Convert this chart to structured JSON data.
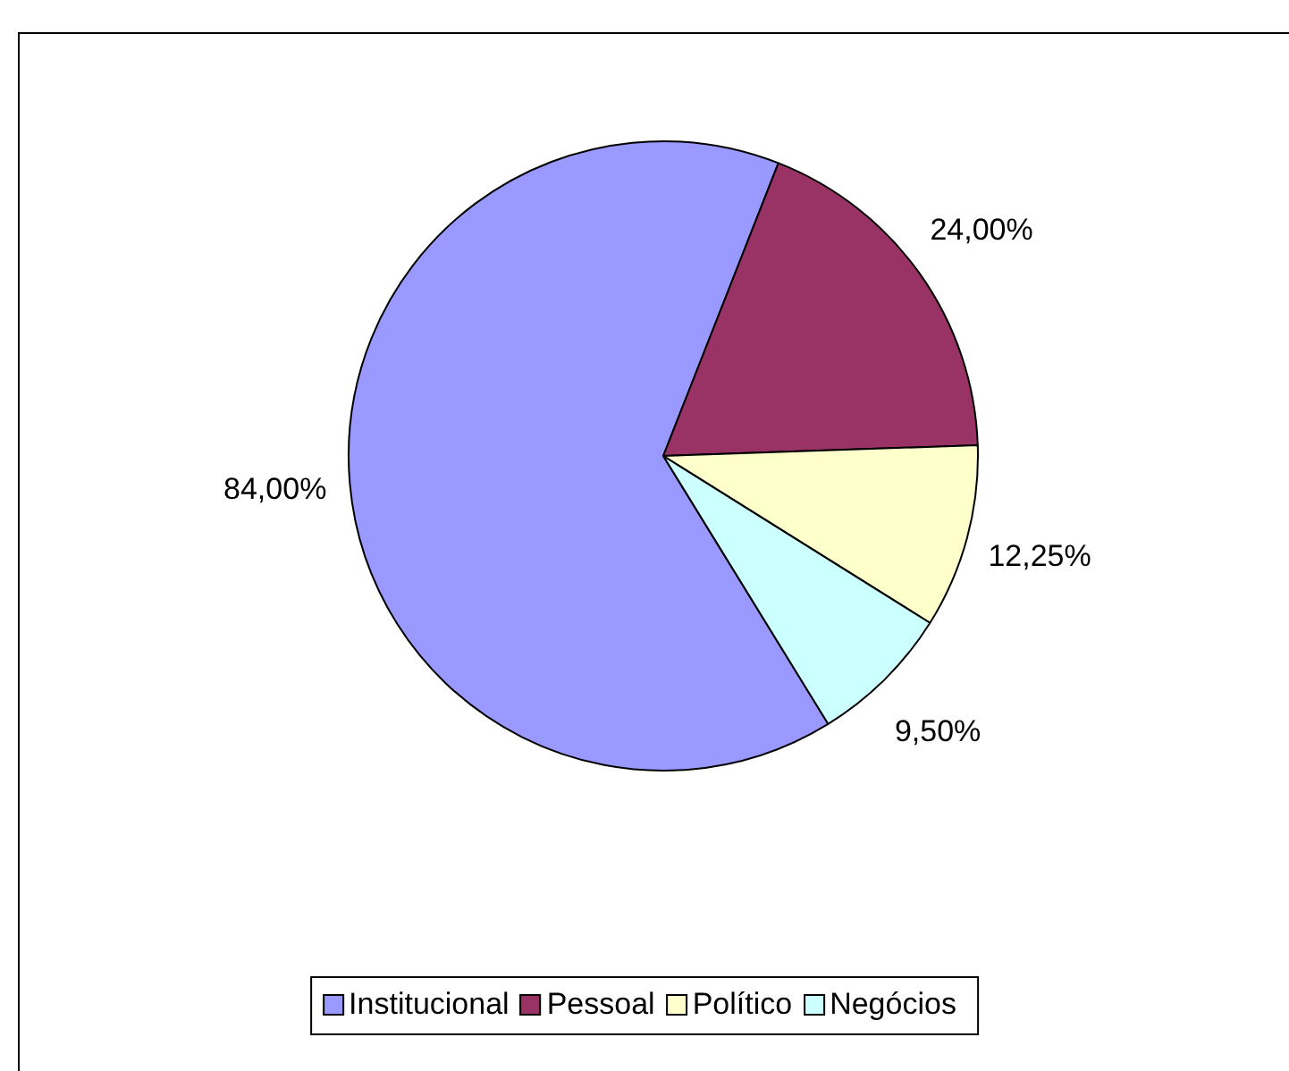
{
  "chart_data": {
    "type": "pie",
    "categories": [
      "Institucional",
      "Pessoal",
      "Político",
      "Negócios"
    ],
    "values": [
      84,
      24,
      12.25,
      9.5
    ],
    "colors": [
      "#9999ff",
      "#993366",
      "#ffffcc",
      "#ccffff"
    ],
    "value_labels": [
      "84,00%",
      "24,00%",
      "12,25%",
      "9,50%"
    ],
    "legend": "bottom"
  }
}
